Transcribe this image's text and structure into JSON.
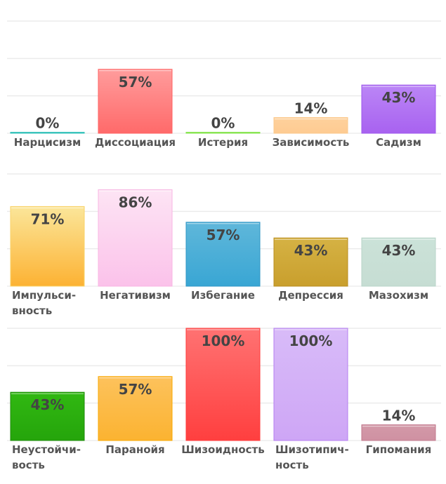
{
  "chart_data": [
    {
      "type": "bar",
      "ylim": [
        0,
        100
      ],
      "grid": true,
      "value_format": "percent",
      "categories": [
        "Нарцисизм",
        "Диссоциация",
        "Истерия",
        "Зависимость",
        "Садизм"
      ],
      "values": [
        0,
        57,
        0,
        14,
        43
      ],
      "value_labels": [
        "0%",
        "57%",
        "0%",
        "14%",
        "43%"
      ],
      "colors": [
        [
          "#5fd3cc",
          "#3cc4bc"
        ],
        [
          "#ff9c9c",
          "#ff6a6a"
        ],
        [
          "#a6f27a",
          "#8ee85a"
        ],
        [
          "#fed19c",
          "#fecb92"
        ],
        [
          "#bb86f6",
          "#a862f0"
        ]
      ],
      "borders": [
        "#38c3bb",
        "#ff6363",
        "#86e34f",
        "#fbc98c",
        "#9e58ec"
      ]
    },
    {
      "type": "bar",
      "ylim": [
        0,
        100
      ],
      "grid": true,
      "value_format": "percent",
      "categories": [
        "Импульси-\nвность",
        "Негативизм",
        "Избегание",
        "Депрессия",
        "Мазохизм"
      ],
      "values": [
        71,
        86,
        57,
        43,
        43
      ],
      "value_labels": [
        "71%",
        "86%",
        "57%",
        "43%",
        "43%"
      ],
      "colors": [
        [
          "#fbe69a",
          "#fcb233"
        ],
        [
          "#fde4f4",
          "#fbc2ea"
        ],
        [
          "#5fb7da",
          "#39a6d4"
        ],
        [
          "#d5b244",
          "#c99f2d"
        ],
        [
          "#cbe2d8",
          "#c6ddd3"
        ]
      ],
      "borders": [
        "#f9d36a",
        "#f8b5e3",
        "#2f96c4",
        "#b98e20",
        "#b9d4c9"
      ]
    },
    {
      "type": "bar",
      "ylim": [
        0,
        100
      ],
      "grid": true,
      "value_format": "percent",
      "categories": [
        "Неустойчи-\nвость",
        "Паранойя",
        "Шизоидность",
        "Шизотипич-\nность",
        "Гипомания"
      ],
      "values": [
        43,
        57,
        100,
        100,
        14
      ],
      "value_labels": [
        "43%",
        "57%",
        "100%",
        "100%",
        "14%"
      ],
      "colors": [
        [
          "#31b812",
          "#25a50b"
        ],
        [
          "#fdc25c",
          "#fbb331"
        ],
        [
          "#ff7272",
          "#ff3f3f"
        ],
        [
          "#d8bbf8",
          "#cea6f6"
        ],
        [
          "#d399a8",
          "#cf91a2"
        ]
      ],
      "borders": [
        "#1d8a08",
        "#f8a900",
        "#ff3a3a",
        "#b47ef0",
        "#c27a8e"
      ]
    }
  ]
}
